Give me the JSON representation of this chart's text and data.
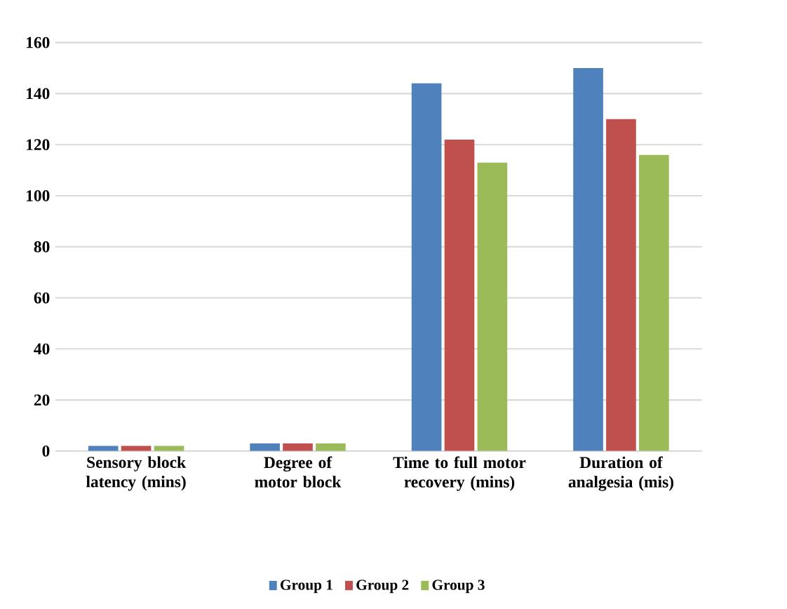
{
  "chart_data": {
    "type": "bar",
    "categories": [
      "Sensory block latency (mins)",
      "Degree of motor block",
      "Time to full motor recovery (mins)",
      "Duration of analgesia (mis)"
    ],
    "series": [
      {
        "name": "Group 1",
        "color": "#4f81bd",
        "values": [
          2,
          3,
          144,
          150
        ]
      },
      {
        "name": "Group 2",
        "color": "#c0504d",
        "values": [
          2,
          3,
          122,
          130
        ]
      },
      {
        "name": "Group 3",
        "color": "#9bbb59",
        "values": [
          2,
          3,
          113,
          116
        ]
      }
    ],
    "ylim": [
      0,
      160
    ],
    "yticks": [
      0,
      20,
      40,
      60,
      80,
      100,
      120,
      140,
      160
    ],
    "grid": "y",
    "legend": "bottom"
  }
}
